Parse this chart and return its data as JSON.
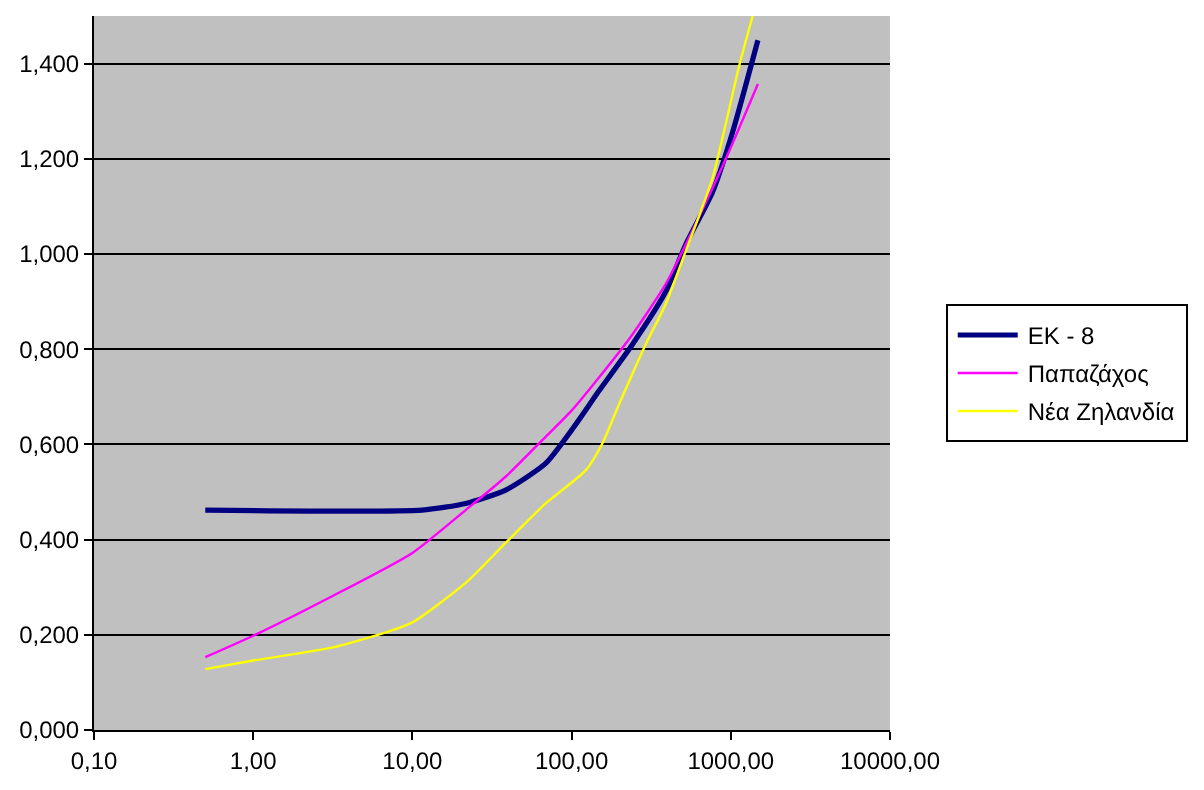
{
  "chart_data": {
    "type": "line",
    "log": "x",
    "grid": "y",
    "legend": "right",
    "marker": "none",
    "line_style": "solid",
    "xlim": [
      0.1,
      10000
    ],
    "ylim": [
      0,
      1.5
    ],
    "xticks": [
      {
        "value": 0.1,
        "label": "0,10"
      },
      {
        "value": 1,
        "label": "1,00"
      },
      {
        "value": 10,
        "label": "10,00"
      },
      {
        "value": 100,
        "label": "100,00"
      },
      {
        "value": 1000,
        "label": "1000,00"
      },
      {
        "value": 10000,
        "label": "10000,00"
      }
    ],
    "yticks": [
      {
        "value": 0,
        "label": "0,000"
      },
      {
        "value": 0.2,
        "label": "0,200"
      },
      {
        "value": 0.4,
        "label": "0,400"
      },
      {
        "value": 0.6,
        "label": "0,600"
      },
      {
        "value": 0.8,
        "label": "0,800"
      },
      {
        "value": 1.0,
        "label": "1,000"
      },
      {
        "value": 1.2,
        "label": "1,200"
      },
      {
        "value": 1.4,
        "label": "1,400"
      }
    ],
    "series": [
      {
        "name": "ΕΚ - 8",
        "color": "#000080",
        "x": [
          0.5,
          11.5,
          21.6,
          38.5,
          68.7,
          100,
          149,
          241,
          389,
          521,
          767,
          1026,
          1480
        ],
        "values": [
          0.462,
          0.462,
          0.476,
          0.504,
          0.56,
          0.63,
          0.713,
          0.81,
          0.92,
          1.02,
          1.13,
          1.256,
          1.449
        ]
      },
      {
        "name": "Παπαζάχος",
        "color": "#ff00ff",
        "x": [
          0.5,
          1,
          3.13,
          10,
          21.6,
          38.5,
          68.7,
          100,
          149,
          241,
          389,
          521,
          931,
          1480
        ],
        "values": [
          0.153,
          0.198,
          0.281,
          0.372,
          0.462,
          0.532,
          0.616,
          0.671,
          0.741,
          0.831,
          0.936,
          1.02,
          1.2,
          1.357
        ]
      },
      {
        "name": "Νέα Ζηλανδία",
        "color": "#ffff00",
        "x": [
          0.5,
          1,
          3.13,
          6.8,
          10,
          21.6,
          38.5,
          68.7,
          123,
          156,
          199,
          292,
          389,
          521,
          767,
          1130,
          1371
        ],
        "values": [
          0.128,
          0.146,
          0.173,
          0.205,
          0.226,
          0.309,
          0.393,
          0.476,
          0.546,
          0.602,
          0.685,
          0.81,
          0.894,
          1.006,
          1.159,
          1.396,
          1.5
        ]
      }
    ]
  }
}
